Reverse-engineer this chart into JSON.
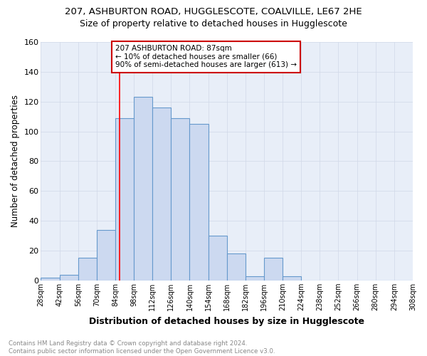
{
  "title1": "207, ASHBURTON ROAD, HUGGLESCOTE, COALVILLE, LE67 2HE",
  "title2": "Size of property relative to detached houses in Hugglescote",
  "xlabel": "Distribution of detached houses by size in Hugglescote",
  "ylabel": "Number of detached properties",
  "footnote": "Contains HM Land Registry data © Crown copyright and database right 2024.\nContains public sector information licensed under the Open Government Licence v3.0.",
  "bin_edges": [
    28,
    42,
    56,
    70,
    84,
    98,
    112,
    126,
    140,
    154,
    168,
    182,
    196,
    210,
    224,
    238,
    252,
    266,
    280,
    294,
    308
  ],
  "counts": [
    2,
    4,
    15,
    34,
    109,
    123,
    116,
    109,
    105,
    30,
    18,
    3,
    15,
    3,
    0,
    0,
    0,
    0,
    0,
    0
  ],
  "bar_color": "#ccd9f0",
  "bar_edge_color": "#6699cc",
  "grid_color": "#d0d8e8",
  "bg_color": "#e8eef8",
  "red_line_x": 87,
  "annotation_text": "207 ASHBURTON ROAD: 87sqm\n← 10% of detached houses are smaller (66)\n90% of semi-detached houses are larger (613) →",
  "annotation_box_color": "#ffffff",
  "annotation_box_edge": "#cc0000",
  "ylim": [
    0,
    160
  ],
  "yticks": [
    0,
    20,
    40,
    60,
    80,
    100,
    120,
    140,
    160
  ],
  "tick_labels": [
    "28sqm",
    "42sqm",
    "56sqm",
    "70sqm",
    "84sqm",
    "98sqm",
    "112sqm",
    "126sqm",
    "140sqm",
    "154sqm",
    "168sqm",
    "182sqm",
    "196sqm",
    "210sqm",
    "224sqm",
    "238sqm",
    "252sqm",
    "266sqm",
    "280sqm",
    "294sqm",
    "308sqm"
  ]
}
